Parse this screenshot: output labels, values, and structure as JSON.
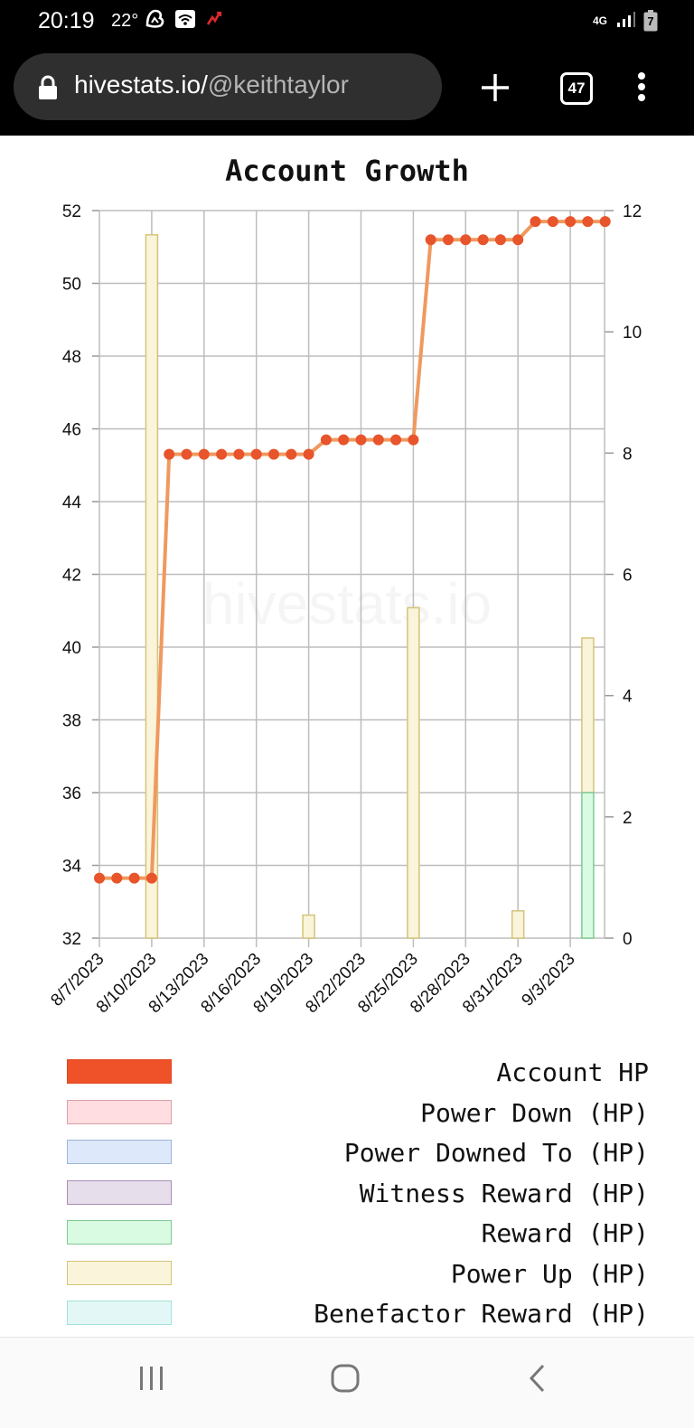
{
  "status": {
    "time": "20:19",
    "temperature": "22°",
    "network": "4G",
    "battery": "7"
  },
  "browser": {
    "url_host": "hivestats.io/",
    "url_path": "@keithtaylor",
    "tab_count": "47"
  },
  "chart_data": {
    "type": "line",
    "title": "Account Growth",
    "watermark": "hivestats.io",
    "x_tick_labels": [
      "8/7/2023",
      "8/10/2023",
      "8/13/2023",
      "8/16/2023",
      "8/19/2023",
      "8/22/2023",
      "8/25/2023",
      "8/28/2023",
      "8/31/2023",
      "9/3/2023"
    ],
    "x_dates": [
      "2023-08-07",
      "2023-08-08",
      "2023-08-09",
      "2023-08-10",
      "2023-08-11",
      "2023-08-12",
      "2023-08-13",
      "2023-08-14",
      "2023-08-15",
      "2023-08-16",
      "2023-08-17",
      "2023-08-18",
      "2023-08-19",
      "2023-08-20",
      "2023-08-21",
      "2023-08-22",
      "2023-08-23",
      "2023-08-24",
      "2023-08-25",
      "2023-08-26",
      "2023-08-27",
      "2023-08-28",
      "2023-08-29",
      "2023-08-30",
      "2023-08-31",
      "2023-09-01",
      "2023-09-02",
      "2023-09-03",
      "2023-09-04",
      "2023-09-05"
    ],
    "y_left": {
      "min": 32,
      "max": 52,
      "ticks": [
        32,
        34,
        36,
        38,
        40,
        42,
        44,
        46,
        48,
        50,
        52
      ]
    },
    "y_right": {
      "min": 0,
      "max": 12,
      "ticks": [
        0,
        2,
        4,
        6,
        8,
        10,
        12
      ]
    },
    "grid": true,
    "legend_position": "bottom",
    "series": [
      {
        "name": "Account HP",
        "axis": "left",
        "kind": "line",
        "color": "#e8542b",
        "values": [
          33.65,
          33.65,
          33.65,
          33.65,
          45.3,
          45.3,
          45.3,
          45.3,
          45.3,
          45.3,
          45.3,
          45.3,
          45.3,
          45.7,
          45.7,
          45.7,
          45.7,
          45.7,
          45.7,
          51.2,
          51.2,
          51.2,
          51.2,
          51.2,
          51.2,
          51.7,
          51.7,
          51.7,
          51.7,
          51.7
        ]
      },
      {
        "name": "Power Up (HP)",
        "axis": "right",
        "kind": "bar",
        "color": "#e6d98a",
        "bars": [
          {
            "date": "2023-08-10",
            "value": 11.6
          },
          {
            "date": "2023-08-19",
            "value": 0.38
          },
          {
            "date": "2023-08-25",
            "value": 5.45
          },
          {
            "date": "2023-08-31",
            "value": 0.45
          },
          {
            "date": "2023-09-04",
            "value": 4.95,
            "base": 2.4
          }
        ]
      },
      {
        "name": "Reward (HP)",
        "axis": "right",
        "kind": "bar",
        "color": "#8fdca4",
        "bars": [
          {
            "date": "2023-09-04",
            "value": 2.4
          }
        ]
      }
    ]
  },
  "legend": [
    {
      "label": "Account HP",
      "fill": "#ef5128",
      "border": "#e04820"
    },
    {
      "label": "Power Down (HP)",
      "fill": "#ffdde0",
      "border": "#d9a0a6"
    },
    {
      "label": "Power Downed To (HP)",
      "fill": "#dde9fb",
      "border": "#9fb4d6"
    },
    {
      "label": "Witness Reward (HP)",
      "fill": "#e6deeb",
      "border": "#a98cb4"
    },
    {
      "label": "Reward (HP)",
      "fill": "#d9fbe1",
      "border": "#7fc995"
    },
    {
      "label": "Power Up (HP)",
      "fill": "#f9f4da",
      "border": "#d4c47a"
    },
    {
      "label": "Benefactor Reward (HP)",
      "fill": "#e3f8f6",
      "border": "#a4e0da"
    }
  ]
}
